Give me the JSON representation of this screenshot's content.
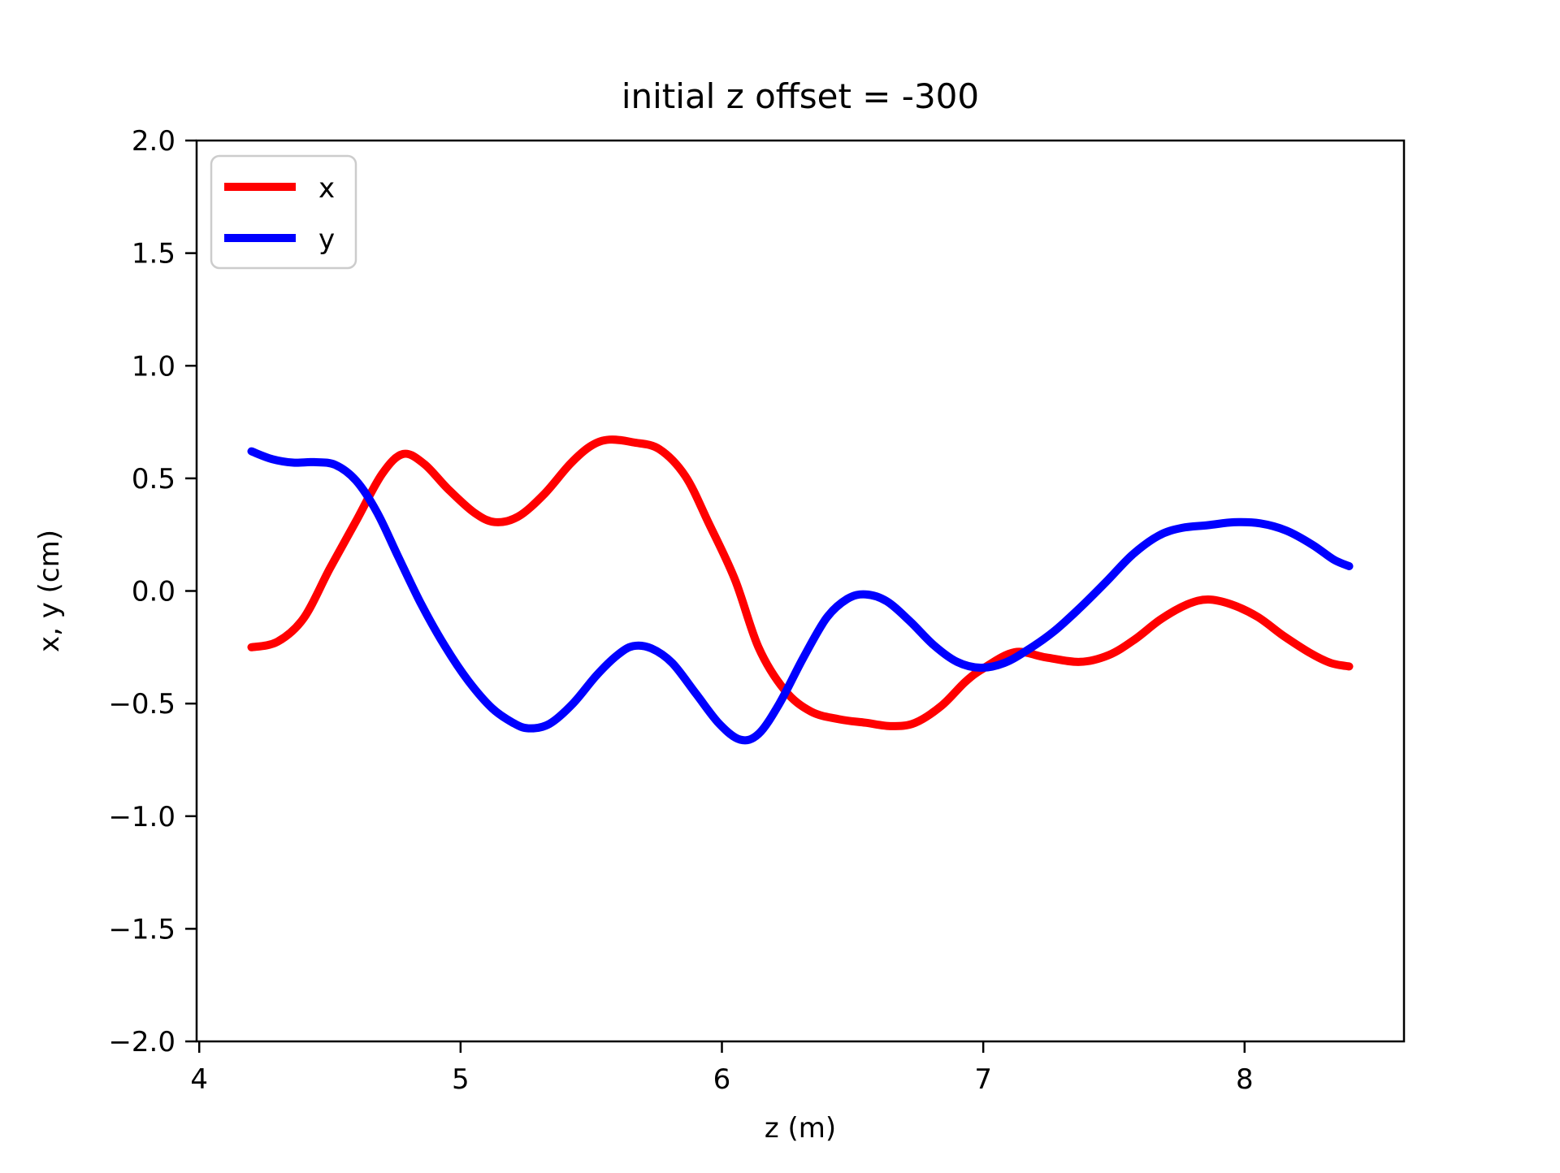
{
  "title": "initial z offset = -300",
  "xlabel": "z (m)",
  "ylabel": "x, y (cm)",
  "legend": {
    "items": [
      {
        "label": "x",
        "color": "#ff0000"
      },
      {
        "label": "y",
        "color": "#0000ff"
      }
    ]
  },
  "axes": {
    "xticks": [
      {
        "v": 4,
        "label": "4"
      },
      {
        "v": 5,
        "label": "5"
      },
      {
        "v": 6,
        "label": "6"
      },
      {
        "v": 7,
        "label": "7"
      },
      {
        "v": 8,
        "label": "8"
      }
    ],
    "yticks": [
      {
        "v": 2.0,
        "label": "2.0"
      },
      {
        "v": 1.5,
        "label": "1.5"
      },
      {
        "v": 1.0,
        "label": "1.0"
      },
      {
        "v": 0.5,
        "label": "0.5"
      },
      {
        "v": 0.0,
        "label": "0.0"
      },
      {
        "v": -0.5,
        "label": "−0.5"
      },
      {
        "v": -1.0,
        "label": "−1.0"
      },
      {
        "v": -1.5,
        "label": "−1.5"
      },
      {
        "v": -2.0,
        "label": "−2.0"
      }
    ]
  },
  "chart_data": {
    "type": "line",
    "title": "initial z offset = -300",
    "xlabel": "z (m)",
    "ylabel": "x, y (cm)",
    "xlim": [
      3.99,
      8.61
    ],
    "ylim": [
      -2.0,
      2.0
    ],
    "grid": false,
    "legend_position": "upper left",
    "series": [
      {
        "name": "x",
        "color": "#ff0000",
        "x": [
          4.2,
          4.3,
          4.4,
          4.5,
          4.6,
          4.7,
          4.78,
          4.86,
          4.95,
          5.05,
          5.13,
          5.22,
          5.32,
          5.42,
          5.5,
          5.57,
          5.66,
          5.76,
          5.86,
          5.95,
          6.05,
          6.14,
          6.24,
          6.34,
          6.45,
          6.55,
          6.65,
          6.74,
          6.84,
          6.93,
          7.0,
          7.12,
          7.24,
          7.37,
          7.48,
          7.58,
          7.68,
          7.78,
          7.86,
          7.95,
          8.05,
          8.15,
          8.25,
          8.33,
          8.4
        ],
        "y": [
          -0.25,
          -0.225,
          -0.12,
          0.1,
          0.31,
          0.52,
          0.608,
          0.565,
          0.455,
          0.35,
          0.306,
          0.33,
          0.43,
          0.565,
          0.645,
          0.672,
          0.66,
          0.63,
          0.51,
          0.3,
          0.05,
          -0.25,
          -0.44,
          -0.535,
          -0.57,
          -0.585,
          -0.6,
          -0.585,
          -0.51,
          -0.405,
          -0.344,
          -0.272,
          -0.295,
          -0.315,
          -0.285,
          -0.215,
          -0.125,
          -0.06,
          -0.038,
          -0.06,
          -0.115,
          -0.2,
          -0.275,
          -0.32,
          -0.335
        ]
      },
      {
        "name": "y",
        "color": "#0000ff",
        "x": [
          4.2,
          4.28,
          4.36,
          4.44,
          4.52,
          4.6,
          4.68,
          4.76,
          4.85,
          4.94,
          5.03,
          5.12,
          5.2,
          5.26,
          5.34,
          5.43,
          5.52,
          5.6,
          5.66,
          5.73,
          5.81,
          5.9,
          5.99,
          6.07,
          6.14,
          6.22,
          6.31,
          6.4,
          6.48,
          6.55,
          6.63,
          6.72,
          6.81,
          6.9,
          6.99,
          7.08,
          7.17,
          7.27,
          7.37,
          7.47,
          7.57,
          7.67,
          7.76,
          7.86,
          7.96,
          8.06,
          8.16,
          8.26,
          8.34,
          8.4
        ],
        "y": [
          0.62,
          0.585,
          0.57,
          0.572,
          0.56,
          0.49,
          0.35,
          0.155,
          -0.06,
          -0.245,
          -0.4,
          -0.52,
          -0.585,
          -0.61,
          -0.59,
          -0.5,
          -0.375,
          -0.285,
          -0.245,
          -0.255,
          -0.32,
          -0.455,
          -0.59,
          -0.66,
          -0.635,
          -0.5,
          -0.3,
          -0.12,
          -0.035,
          -0.015,
          -0.045,
          -0.135,
          -0.24,
          -0.315,
          -0.341,
          -0.32,
          -0.262,
          -0.18,
          -0.075,
          0.04,
          0.16,
          0.245,
          0.28,
          0.292,
          0.305,
          0.3,
          0.268,
          0.205,
          0.14,
          0.11
        ]
      }
    ]
  }
}
